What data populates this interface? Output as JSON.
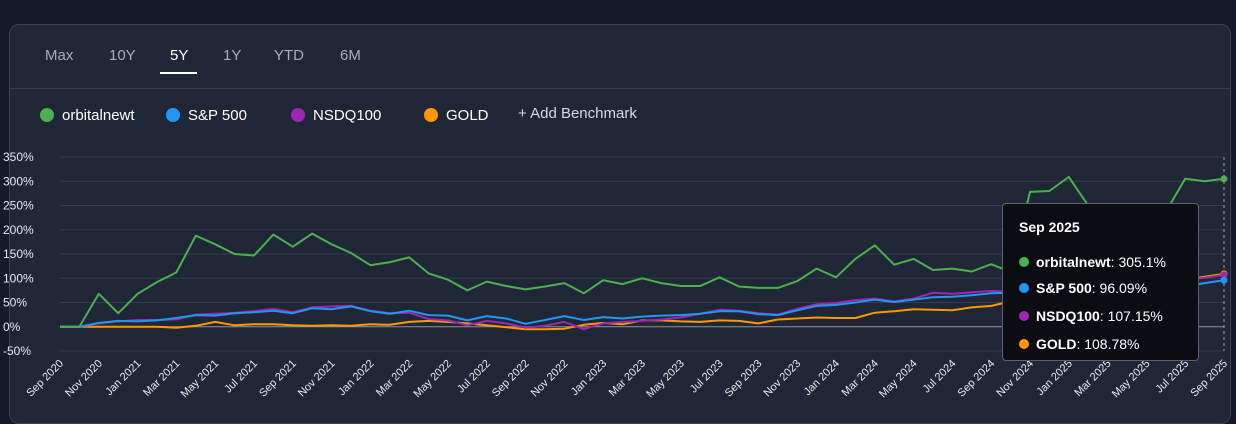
{
  "tabs": [
    {
      "label": "Max",
      "active": false
    },
    {
      "label": "10Y",
      "active": false
    },
    {
      "label": "5Y",
      "active": true
    },
    {
      "label": "1Y",
      "active": false
    },
    {
      "label": "YTD",
      "active": false
    },
    {
      "label": "6M",
      "active": false
    }
  ],
  "legend": {
    "items": [
      {
        "label": "orbitalnewt",
        "color": "#4caf50"
      },
      {
        "label": "S&P 500",
        "color": "#2196f3"
      },
      {
        "label": "NSDQ100",
        "color": "#9c27b0"
      },
      {
        "label": "GOLD",
        "color": "#ff9800"
      }
    ],
    "add_benchmark": "+ Add Benchmark"
  },
  "tooltip": {
    "title": "Sep 2025",
    "rows": [
      {
        "name": "orbitalnewt",
        "value": ": 305.1%",
        "color": "#4caf50"
      },
      {
        "name": "S&P 500",
        "value": ": 96.09%",
        "color": "#2196f3"
      },
      {
        "name": "NSDQ100",
        "value": ": 107.15%",
        "color": "#9c27b0"
      },
      {
        "name": "GOLD",
        "value": ": 108.78%",
        "color": "#ff9800"
      }
    ]
  },
  "chart_data": {
    "type": "line",
    "ylim": [
      -50,
      350
    ],
    "yticks": [
      "350%",
      "300%",
      "250%",
      "200%",
      "150%",
      "100%",
      "50%",
      "0%",
      "-50%"
    ],
    "xtick_labels": [
      "Sep 2020",
      "Nov 2020",
      "Jan 2021",
      "Mar 2021",
      "May 2021",
      "Jul 2021",
      "Sep 2021",
      "Nov 2021",
      "Jan 2022",
      "Mar 2022",
      "May 2022",
      "Jul 2022",
      "Sep 2022",
      "Nov 2022",
      "Jan 2023",
      "Mar 2023",
      "May 2023",
      "Jul 2023",
      "Sep 2023",
      "Nov 2023",
      "Jan 2024",
      "Mar 2024",
      "May 2024",
      "Jul 2024",
      "Sep 2024",
      "Nov 2024",
      "Jan 2025",
      "Mar 2025",
      "May 2025",
      "Jul 2025",
      "Sep 2025"
    ],
    "x_months": [
      "Sep 2020",
      "Oct 2020",
      "Nov 2020",
      "Dec 2020",
      "Jan 2021",
      "Feb 2021",
      "Mar 2021",
      "Apr 2021",
      "May 2021",
      "Jun 2021",
      "Jul 2021",
      "Aug 2021",
      "Sep 2021",
      "Oct 2021",
      "Nov 2021",
      "Dec 2021",
      "Jan 2022",
      "Feb 2022",
      "Mar 2022",
      "Apr 2022",
      "May 2022",
      "Jun 2022",
      "Jul 2022",
      "Aug 2022",
      "Sep 2022",
      "Oct 2022",
      "Nov 2022",
      "Dec 2022",
      "Jan 2023",
      "Feb 2023",
      "Mar 2023",
      "Apr 2023",
      "May 2023",
      "Jun 2023",
      "Jul 2023",
      "Aug 2023",
      "Sep 2023",
      "Oct 2023",
      "Nov 2023",
      "Dec 2023",
      "Jan 2024",
      "Feb 2024",
      "Mar 2024",
      "Apr 2024",
      "May 2024",
      "Jun 2024",
      "Jul 2024",
      "Aug 2024",
      "Sep 2024",
      "Oct 2024",
      "Nov 2024",
      "Dec 2024",
      "Jan 2025",
      "Feb 2025",
      "Mar 2025",
      "Apr 2025",
      "May 2025",
      "Jun 2025",
      "Jul 2025",
      "Aug 2025",
      "Sep 2025"
    ],
    "grid": true,
    "series": [
      {
        "name": "orbitalnewt",
        "color": "#4caf50",
        "values": [
          0,
          0,
          68,
          28,
          68,
          92,
          112,
          188,
          170,
          150,
          147,
          190,
          165,
          192,
          170,
          152,
          127,
          133,
          143,
          110,
          97,
          75,
          93,
          84,
          77,
          83,
          90,
          69,
          96,
          88,
          100,
          90,
          84,
          84,
          102,
          83,
          80,
          80,
          94,
          120,
          102,
          140,
          168,
          128,
          140,
          117,
          120,
          114,
          129,
          113,
          278,
          280,
          309,
          250,
          213,
          235,
          247,
          237,
          305,
          300,
          305
        ]
      },
      {
        "name": "S&P 500",
        "color": "#2196f3",
        "values": [
          0,
          0,
          8,
          12,
          11,
          13,
          18,
          24,
          23,
          28,
          30,
          33,
          28,
          38,
          36,
          42,
          32,
          27,
          33,
          24,
          23,
          13,
          22,
          17,
          6,
          14,
          22,
          14,
          20,
          17,
          21,
          23,
          24,
          27,
          32,
          32,
          26,
          24,
          34,
          43,
          45,
          50,
          56,
          51,
          56,
          61,
          62,
          65,
          69,
          70,
          74,
          78,
          81,
          76,
          69,
          70,
          78,
          79,
          83,
          90,
          96
        ]
      },
      {
        "name": "NSDQ100",
        "color": "#9c27b0",
        "values": [
          0,
          0,
          7,
          11,
          14,
          14,
          15,
          25,
          27,
          29,
          32,
          37,
          30,
          40,
          42,
          43,
          33,
          28,
          29,
          16,
          13,
          3,
          12,
          7,
          -2,
          2,
          10,
          -5,
          7,
          10,
          12,
          15,
          19,
          27,
          35,
          33,
          28,
          25,
          37,
          46,
          49,
          55,
          58,
          52,
          58,
          70,
          68,
          71,
          74,
          72,
          80,
          83,
          85,
          79,
          71,
          75,
          82,
          88,
          96,
          101,
          107
        ]
      },
      {
        "name": "GOLD",
        "color": "#ff9800",
        "values": [
          0,
          0,
          0,
          0,
          0,
          0,
          -2,
          2,
          10,
          3,
          5,
          5,
          3,
          2,
          3,
          2,
          5,
          4,
          10,
          12,
          10,
          7,
          3,
          -1,
          -5,
          -5,
          -4,
          4,
          8,
          5,
          13,
          13,
          11,
          10,
          13,
          12,
          7,
          15,
          17,
          19,
          18,
          18,
          29,
          32,
          36,
          35,
          34,
          40,
          43,
          52,
          58,
          54,
          60,
          66,
          69,
          73,
          80,
          90,
          97,
          103,
          109
        ]
      }
    ]
  }
}
